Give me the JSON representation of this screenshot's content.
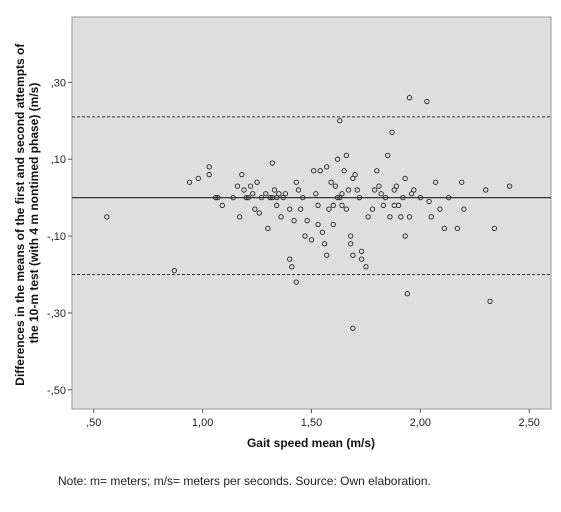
{
  "chart_data": {
    "type": "scatter",
    "title": "",
    "xlabel": "Gait speed mean (m/s)",
    "ylabel_lines": [
      "Differences in the means of the first and second attempts of",
      "the 10-m test (with 4 m nontimed phase) (m/s)"
    ],
    "xlim": [
      0.4,
      2.6
    ],
    "ylim": [
      -0.55,
      0.47
    ],
    "x_ticks": [
      0.5,
      1.0,
      1.5,
      2.0,
      2.5
    ],
    "x_tick_labels": [
      ",50",
      "1,00",
      "1,50",
      "2,00",
      "2,50"
    ],
    "y_ticks": [
      0.3,
      0.1,
      -0.1,
      -0.3,
      -0.5
    ],
    "y_tick_labels": [
      ",30",
      ",10",
      "-,10",
      "-,30",
      "-,50"
    ],
    "mean_line": 0.0,
    "limits_of_agreement": [
      0.21,
      -0.2
    ],
    "grid": false,
    "background": "#dedede",
    "marker_color": "#222222",
    "points": [
      [
        0.56,
        -0.05
      ],
      [
        0.87,
        -0.19
      ],
      [
        0.94,
        0.04
      ],
      [
        0.98,
        0.05
      ],
      [
        1.03,
        0.08
      ],
      [
        1.03,
        0.06
      ],
      [
        1.06,
        0.0
      ],
      [
        1.07,
        0.0
      ],
      [
        1.09,
        -0.02
      ],
      [
        1.14,
        0.0
      ],
      [
        1.16,
        0.03
      ],
      [
        1.17,
        -0.05
      ],
      [
        1.18,
        0.06
      ],
      [
        1.19,
        0.02
      ],
      [
        1.2,
        0.0
      ],
      [
        1.21,
        0.0
      ],
      [
        1.22,
        0.03
      ],
      [
        1.23,
        0.01
      ],
      [
        1.24,
        -0.03
      ],
      [
        1.25,
        0.04
      ],
      [
        1.26,
        -0.04
      ],
      [
        1.27,
        0.0
      ],
      [
        1.29,
        0.01
      ],
      [
        1.3,
        -0.08
      ],
      [
        1.31,
        0.0
      ],
      [
        1.32,
        0.0
      ],
      [
        1.32,
        0.09
      ],
      [
        1.33,
        0.02
      ],
      [
        1.34,
        0.0
      ],
      [
        1.34,
        -0.02
      ],
      [
        1.35,
        0.01
      ],
      [
        1.36,
        -0.05
      ],
      [
        1.37,
        0.0
      ],
      [
        1.38,
        0.01
      ],
      [
        1.4,
        -0.03
      ],
      [
        1.4,
        -0.16
      ],
      [
        1.41,
        -0.18
      ],
      [
        1.42,
        -0.06
      ],
      [
        1.43,
        0.04
      ],
      [
        1.43,
        -0.22
      ],
      [
        1.44,
        0.02
      ],
      [
        1.45,
        -0.03
      ],
      [
        1.46,
        0.0
      ],
      [
        1.47,
        -0.1
      ],
      [
        1.48,
        -0.06
      ],
      [
        1.5,
        -0.11
      ],
      [
        1.51,
        0.07
      ],
      [
        1.52,
        0.01
      ],
      [
        1.53,
        -0.02
      ],
      [
        1.53,
        -0.07
      ],
      [
        1.54,
        0.07
      ],
      [
        1.55,
        -0.09
      ],
      [
        1.56,
        -0.12
      ],
      [
        1.57,
        0.08
      ],
      [
        1.57,
        -0.15
      ],
      [
        1.58,
        -0.03
      ],
      [
        1.59,
        0.04
      ],
      [
        1.6,
        -0.02
      ],
      [
        1.6,
        -0.07
      ],
      [
        1.61,
        0.03
      ],
      [
        1.62,
        0.0
      ],
      [
        1.62,
        0.1
      ],
      [
        1.63,
        0.2
      ],
      [
        1.63,
        0.0
      ],
      [
        1.64,
        0.01
      ],
      [
        1.64,
        -0.02
      ],
      [
        1.65,
        0.07
      ],
      [
        1.66,
        0.11
      ],
      [
        1.66,
        -0.03
      ],
      [
        1.67,
        0.02
      ],
      [
        1.68,
        -0.1
      ],
      [
        1.68,
        -0.12
      ],
      [
        1.69,
        0.05
      ],
      [
        1.69,
        -0.15
      ],
      [
        1.69,
        -0.34
      ],
      [
        1.7,
        0.06
      ],
      [
        1.71,
        0.02
      ],
      [
        1.72,
        0.0
      ],
      [
        1.73,
        -0.14
      ],
      [
        1.73,
        -0.16
      ],
      [
        1.75,
        -0.18
      ],
      [
        1.76,
        -0.05
      ],
      [
        1.78,
        -0.03
      ],
      [
        1.79,
        0.02
      ],
      [
        1.8,
        0.07
      ],
      [
        1.81,
        0.03
      ],
      [
        1.82,
        0.01
      ],
      [
        1.83,
        -0.02
      ],
      [
        1.84,
        0.0
      ],
      [
        1.85,
        0.11
      ],
      [
        1.86,
        -0.05
      ],
      [
        1.87,
        0.17
      ],
      [
        1.88,
        0.02
      ],
      [
        1.88,
        -0.02
      ],
      [
        1.89,
        0.03
      ],
      [
        1.9,
        -0.02
      ],
      [
        1.91,
        -0.05
      ],
      [
        1.92,
        0.0
      ],
      [
        1.93,
        0.05
      ],
      [
        1.93,
        -0.1
      ],
      [
        1.94,
        -0.25
      ],
      [
        1.95,
        -0.05
      ],
      [
        1.95,
        0.26
      ],
      [
        1.96,
        0.01
      ],
      [
        1.97,
        0.02
      ],
      [
        2.0,
        0.0
      ],
      [
        2.03,
        0.25
      ],
      [
        2.04,
        -0.01
      ],
      [
        2.05,
        -0.05
      ],
      [
        2.07,
        0.04
      ],
      [
        2.09,
        -0.03
      ],
      [
        2.11,
        -0.08
      ],
      [
        2.13,
        0.0
      ],
      [
        2.17,
        -0.08
      ],
      [
        2.19,
        0.04
      ],
      [
        2.2,
        -0.03
      ],
      [
        2.3,
        0.02
      ],
      [
        2.32,
        -0.27
      ],
      [
        2.34,
        -0.08
      ],
      [
        2.41,
        0.03
      ]
    ]
  },
  "note": "Note: m= meters; m/s= meters per seconds. Source: Own elaboration."
}
